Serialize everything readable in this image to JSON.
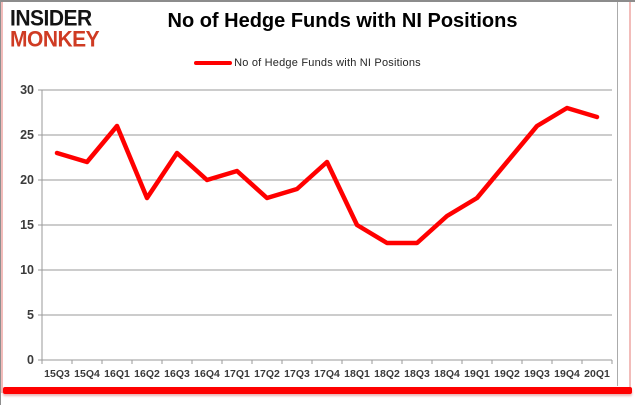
{
  "branding": {
    "logo_line1": "INSIDER",
    "logo_line2": "MONKEY",
    "logo_red": "#cf3b23",
    "logo_black": "#141414"
  },
  "header": {
    "title": "No of Hedge Funds with NI Positions"
  },
  "legend": {
    "label": "No of Hedge Funds with NI Positions",
    "swatch_color": "#ff0000"
  },
  "chart_data": {
    "type": "line",
    "title": "No of Hedge Funds with NI Positions",
    "categories": [
      "15Q3",
      "15Q4",
      "16Q1",
      "16Q2",
      "16Q3",
      "16Q4",
      "17Q1",
      "17Q2",
      "17Q3",
      "17Q4",
      "18Q1",
      "18Q2",
      "18Q3",
      "18Q4",
      "19Q1",
      "19Q2",
      "19Q3",
      "19Q4",
      "20Q1"
    ],
    "series": [
      {
        "name": "No of Hedge Funds with NI Positions",
        "color": "#ff0000",
        "values": [
          23,
          22,
          26,
          18,
          23,
          20,
          21,
          18,
          19,
          22,
          15,
          13,
          13,
          16,
          18,
          22,
          26,
          28,
          27
        ]
      }
    ],
    "xlabel": "",
    "ylabel": "",
    "ylim": [
      0,
      30
    ],
    "yticks": [
      0,
      5,
      10,
      15,
      20,
      25,
      30
    ],
    "grid": "horizontal",
    "legend_position": "top"
  },
  "colors": {
    "grid": "#9a9a9a",
    "axis": "#9a9a9a",
    "tick_text": "#3b3b3b",
    "bottom_bar": "#ff0000"
  }
}
